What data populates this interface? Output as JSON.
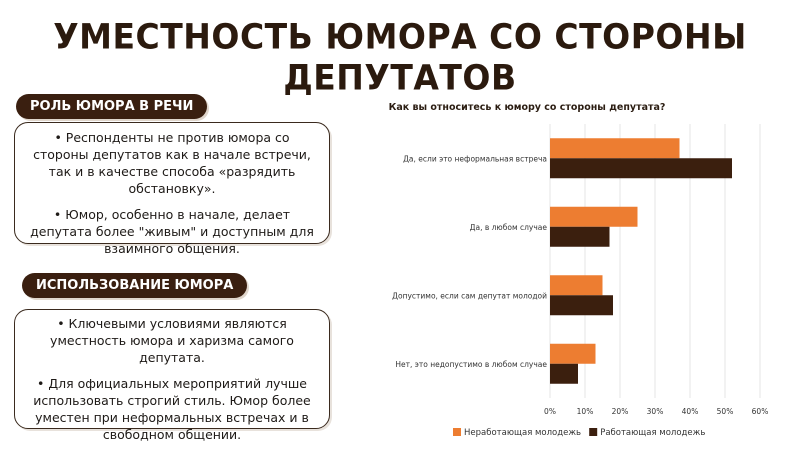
{
  "slide": {
    "title": "УМЕСТНОСТЬ ЮМОРА СО СТОРОНЫ ДЕПУТАТОВ"
  },
  "section1": {
    "heading": "РОЛЬ ЮМОРА В РЕЧИ",
    "bullets": [
      "•  Респонденты не против юмора со стороны депутатов как в начале встречи, так и в качестве  способа «разрядить обстановку».",
      "•  Юмор, особенно в начале, делает депутата более \"живым\" и доступным для взаимного общения."
    ]
  },
  "section2": {
    "heading": "ИСПОЛЬЗОВАНИЕ ЮМОРА",
    "bullets": [
      "•  Ключевыми условиями являются уместность юмора и харизма самого депутата.",
      "•  Для официальных мероприятий лучше использовать строгий стиль. Юмор более уместен при неформальных встречах и в свободном общении."
    ]
  },
  "chart_data": {
    "type": "bar",
    "orientation": "horizontal",
    "title": "Как вы относитесь к юмору со стороны депутата?",
    "categories": [
      "Да, если это неформальная встреча",
      "Да, в любом случае",
      "Допустимо, если сам депутат молодой",
      "Нет, это недопустимо в любом случае"
    ],
    "series": [
      {
        "name": "Неработающая молодежь",
        "color": "#ed7d31",
        "values": [
          37,
          25,
          15,
          13
        ]
      },
      {
        "name": "Работающая молодежь",
        "color": "#3b1f0e",
        "values": [
          52,
          17,
          18,
          8
        ]
      }
    ],
    "xlim": [
      0,
      60
    ],
    "xticks": [
      "0%",
      "10%",
      "20%",
      "30%",
      "40%",
      "50%",
      "60%"
    ],
    "grid": true,
    "legend": "bottom"
  }
}
